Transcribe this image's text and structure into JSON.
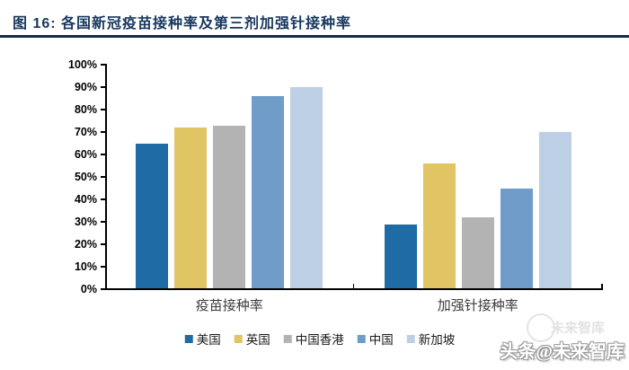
{
  "header": {
    "title": "图  16:  各国新冠疫苗接种率及第三剂加强针接种率"
  },
  "colors": {
    "title_navy": "#17375E",
    "rule_dark": "#1A2B4A",
    "axis_black": "#000000"
  },
  "chart_data": {
    "type": "bar",
    "title": "各国新冠疫苗接种率及第三剂加强针接种率",
    "categories": [
      "疫苗接种率",
      "加强针接种率"
    ],
    "series": [
      {
        "name": "美国",
        "color": "#1F6BA5",
        "values": [
          65,
          29
        ]
      },
      {
        "name": "英国",
        "color": "#E1C463",
        "values": [
          72,
          56
        ]
      },
      {
        "name": "中国香港",
        "color": "#B3B3B3",
        "values": [
          73,
          32
        ]
      },
      {
        "name": "中国",
        "color": "#6F9CC9",
        "values": [
          86,
          45
        ]
      },
      {
        "name": "新加坡",
        "color": "#BDCFE5",
        "values": [
          90,
          70
        ]
      }
    ],
    "xlabel": "",
    "ylabel": "",
    "ylim": [
      0,
      100
    ],
    "ytick_step": 10,
    "ytick_labels": [
      "0%",
      "10%",
      "20%",
      "30%",
      "40%",
      "50%",
      "60%",
      "70%",
      "80%",
      "90%",
      "100%"
    ],
    "grid": false,
    "legend_position": "bottom"
  },
  "watermark": {
    "ghost_text": "未来智库",
    "main_text": "头条@未来智库"
  }
}
